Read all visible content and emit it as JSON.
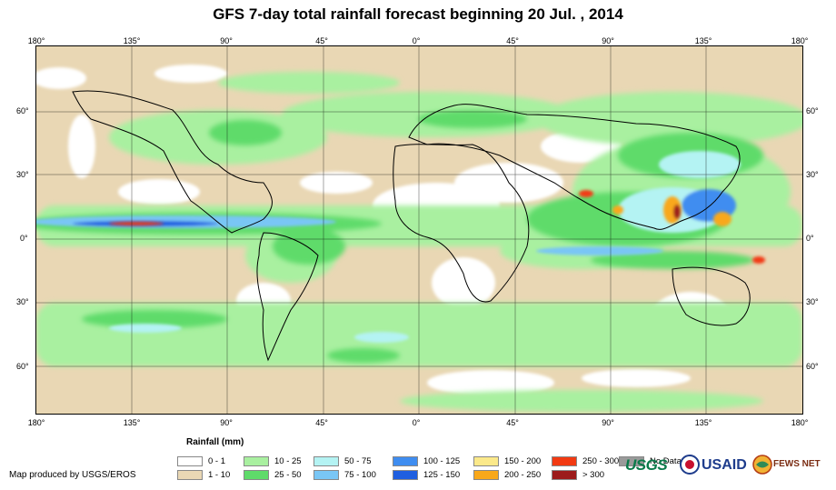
{
  "title": "GFS 7-day total rainfall forecast beginning 20 Jul. , 2014",
  "longitude_labels": [
    "180°",
    "135°",
    "90°",
    "45°",
    "0°",
    "45°",
    "90°",
    "135°",
    "180°"
  ],
  "latitude_labels": [
    "60°",
    "30°",
    "0°",
    "30°",
    "60°"
  ],
  "legend": {
    "title": "Rainfall (mm)",
    "items": [
      {
        "label": "0 - 1",
        "color": "#ffffff"
      },
      {
        "label": "1 - 10",
        "color": "#e9d7b4"
      },
      {
        "label": "10 - 25",
        "color": "#a9f0a0"
      },
      {
        "label": "25 - 50",
        "color": "#5fdb6a"
      },
      {
        "label": "50 - 75",
        "color": "#b4f3f3"
      },
      {
        "label": "75 - 100",
        "color": "#79c6f5"
      },
      {
        "label": "100 - 125",
        "color": "#3f8df0"
      },
      {
        "label": "125 - 150",
        "color": "#1f5fe0"
      },
      {
        "label": "150 - 200",
        "color": "#fbe98a"
      },
      {
        "label": "200 - 250",
        "color": "#f9a81a"
      },
      {
        "label": "250 - 300",
        "color": "#f23a12"
      },
      {
        "label": "> 300",
        "color": "#9c1b1b"
      },
      {
        "label": "No Data",
        "color": "#9a9a9a"
      }
    ]
  },
  "credit": "Map produced by USGS/EROS",
  "logos": {
    "usgs": "USGS",
    "usaid": "USAID",
    "fewsnet": "FEWS NET"
  }
}
